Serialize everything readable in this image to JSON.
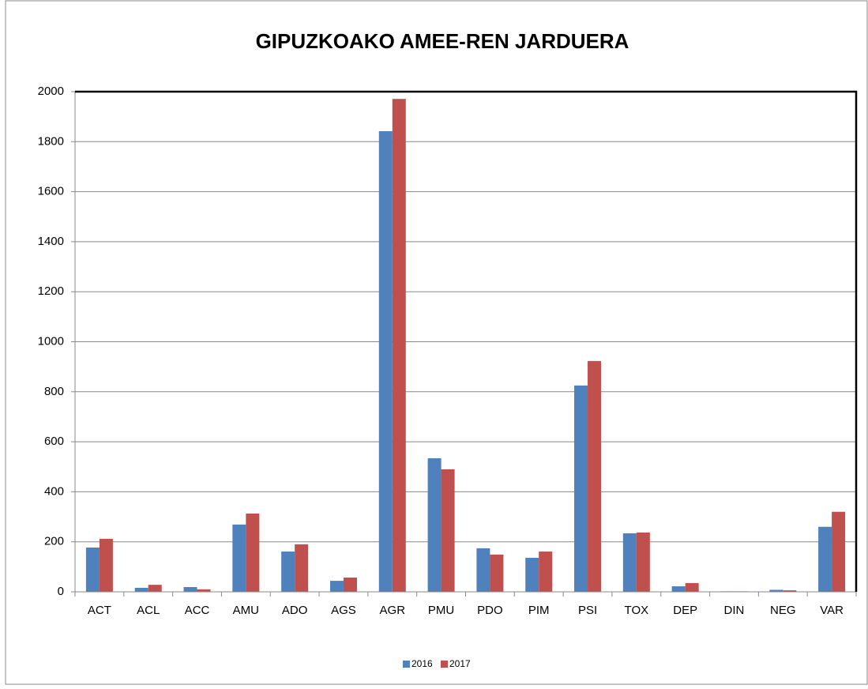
{
  "chart_data": {
    "type": "bar",
    "title": "GIPUZKOAKO AMEE-REN JARDUERA",
    "categories": [
      "ACT",
      "ACL",
      "ACC",
      "AMU",
      "ADO",
      "AGS",
      "AGR",
      "PMU",
      "PDO",
      "PIM",
      "PSI",
      "TOX",
      "DEP",
      "DIN",
      "NEG",
      "VAR"
    ],
    "series": [
      {
        "name": "2016",
        "color": "#4f81bd",
        "values": [
          177,
          16,
          19,
          269,
          161,
          44,
          1842,
          534,
          174,
          136,
          825,
          234,
          22,
          2,
          8,
          260
        ]
      },
      {
        "name": "2017",
        "color": "#c0504d",
        "values": [
          212,
          28,
          10,
          313,
          190,
          57,
          1971,
          490,
          149,
          161,
          923,
          237,
          35,
          2,
          6,
          320
        ]
      }
    ],
    "ylim": [
      0,
      2000
    ],
    "yticks": [
      0,
      200,
      400,
      600,
      800,
      1000,
      1200,
      1400,
      1600,
      1800,
      2000
    ],
    "grid": true,
    "legend": "bottom"
  }
}
